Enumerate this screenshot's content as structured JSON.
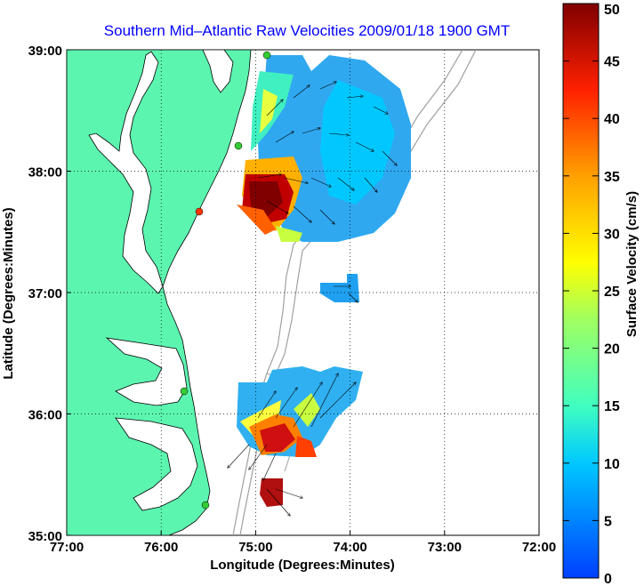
{
  "chart_data": {
    "type": "heatmap",
    "title": "Southern Mid–Atlantic Raw Velocities 2009/01/18 1900 GMT",
    "xlabel": "Longitude (Degrees:Minutes)",
    "ylabel": "Latitude (Degrees:Minutes)",
    "xlim": [
      -77,
      -72
    ],
    "ylim": [
      35,
      39
    ],
    "x_ticks": [
      {
        "value": -77,
        "label": "77:00"
      },
      {
        "value": -76,
        "label": "76:00"
      },
      {
        "value": -75,
        "label": "75:00"
      },
      {
        "value": -74,
        "label": "74:00"
      },
      {
        "value": -73,
        "label": "73:00"
      },
      {
        "value": -72,
        "label": "72:00"
      }
    ],
    "y_ticks": [
      {
        "value": 39,
        "label": "39:00"
      },
      {
        "value": 38,
        "label": "38:00"
      },
      {
        "value": 37,
        "label": "37:00"
      },
      {
        "value": 36,
        "label": "36:00"
      },
      {
        "value": 35,
        "label": "35:00"
      }
    ],
    "grid": true,
    "colorbar": {
      "label": "Surface Velocity (cm/s)",
      "range": [
        0,
        50
      ],
      "ticks": [
        "50",
        "45",
        "40",
        "35",
        "30",
        "25",
        "20",
        "15",
        "10",
        "5",
        "0"
      ],
      "colormap": "jet"
    },
    "colors": {
      "land": "#5cf5b0",
      "coast": "#000000",
      "bathymetry": "#a0a0a0",
      "title": "#0000ff"
    },
    "velocity_regions": [
      {
        "name": "northern field",
        "lon_range": [
          -75.12,
          -73.3
        ],
        "lat_range": [
          37.3,
          38.9
        ],
        "speed_cm_s": [
          4,
          50
        ]
      },
      {
        "name": "small patch",
        "lon_range": [
          -74.35,
          -73.95
        ],
        "lat_range": [
          36.85,
          37.05
        ],
        "speed_cm_s": [
          6,
          12
        ]
      },
      {
        "name": "southern field",
        "lon_range": [
          -75.2,
          -74.0
        ],
        "lat_range": [
          35.5,
          36.6
        ],
        "speed_cm_s": [
          5,
          50
        ]
      },
      {
        "name": "southern tip",
        "lon_range": [
          -74.95,
          -74.7
        ],
        "lat_range": [
          35.3,
          35.55
        ],
        "speed_cm_s": [
          35,
          45
        ]
      }
    ],
    "stations": [
      {
        "lon": -75.05,
        "lat": 38.95,
        "color": "#33cc33"
      },
      {
        "lon": -75.3,
        "lat": 38.3,
        "color": "#33cc33"
      },
      {
        "lon": -75.6,
        "lat": 37.6,
        "color": "#ff3300"
      },
      {
        "lon": -75.75,
        "lat": 36.3,
        "color": "#33cc33"
      },
      {
        "lon": -75.75,
        "lat": 35.35,
        "color": "#33cc33"
      }
    ]
  }
}
